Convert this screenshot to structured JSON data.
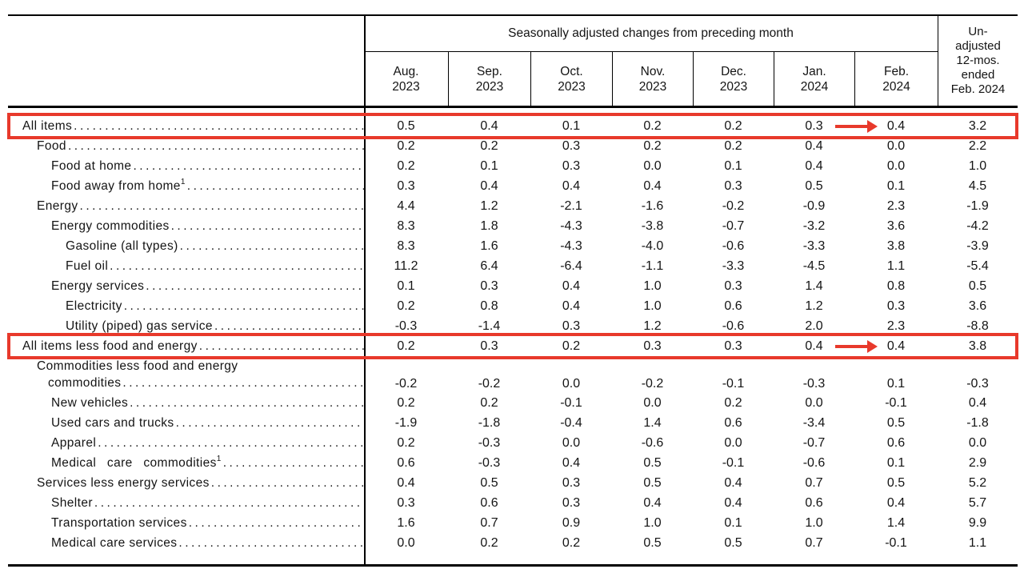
{
  "chart_data": {
    "type": "table",
    "spanner": "Seasonally adjusted changes from preceding month",
    "unadjusted_lines": [
      "Un-",
      "adjusted",
      "12-mos.",
      "ended",
      "Feb. 2024"
    ],
    "columns": [
      {
        "month": "Aug.",
        "year": "2023"
      },
      {
        "month": "Sep.",
        "year": "2023"
      },
      {
        "month": "Oct.",
        "year": "2023"
      },
      {
        "month": "Nov.",
        "year": "2023"
      },
      {
        "month": "Dec.",
        "year": "2023"
      },
      {
        "month": "Jan.",
        "year": "2024"
      },
      {
        "month": "Feb.",
        "year": "2024"
      }
    ],
    "last_column_header": "Un-adjusted 12-mos. ended Feb. 2024",
    "rows": [
      {
        "label": "All items",
        "indent": 0,
        "values": [
          "0.5",
          "0.4",
          "0.1",
          "0.2",
          "0.2",
          "0.3",
          "0.4",
          "3.2"
        ],
        "highlight": true,
        "arrow": true
      },
      {
        "label": "Food",
        "indent": 1,
        "values": [
          "0.2",
          "0.2",
          "0.3",
          "0.2",
          "0.2",
          "0.4",
          "0.0",
          "2.2"
        ]
      },
      {
        "label": "Food at home",
        "indent": 2,
        "values": [
          "0.2",
          "0.1",
          "0.3",
          "0.0",
          "0.1",
          "0.4",
          "0.0",
          "1.0"
        ]
      },
      {
        "label": "Food away from home",
        "sup": "1",
        "indent": 2,
        "values": [
          "0.3",
          "0.4",
          "0.4",
          "0.4",
          "0.3",
          "0.5",
          "0.1",
          "4.5"
        ]
      },
      {
        "label": "Energy",
        "indent": 1,
        "values": [
          "4.4",
          "1.2",
          "-2.1",
          "-1.6",
          "-0.2",
          "-0.9",
          "2.3",
          "-1.9"
        ]
      },
      {
        "label": "Energy commodities",
        "indent": 2,
        "values": [
          "8.3",
          "1.8",
          "-4.3",
          "-3.8",
          "-0.7",
          "-3.2",
          "3.6",
          "-4.2"
        ]
      },
      {
        "label": "Gasoline (all types)",
        "indent": 3,
        "values": [
          "8.3",
          "1.6",
          "-4.3",
          "-4.0",
          "-0.6",
          "-3.3",
          "3.8",
          "-3.9"
        ]
      },
      {
        "label": "Fuel oil",
        "indent": 3,
        "values": [
          "11.2",
          "6.4",
          "-6.4",
          "-1.1",
          "-3.3",
          "-4.5",
          "1.1",
          "-5.4"
        ]
      },
      {
        "label": "Energy services",
        "indent": 2,
        "values": [
          "0.1",
          "0.3",
          "0.4",
          "1.0",
          "0.3",
          "1.4",
          "0.8",
          "0.5"
        ]
      },
      {
        "label": "Electricity",
        "indent": 3,
        "values": [
          "0.2",
          "0.8",
          "0.4",
          "1.0",
          "0.6",
          "1.2",
          "0.3",
          "3.6"
        ]
      },
      {
        "label": "Utility (piped) gas service",
        "indent": 3,
        "values": [
          "-0.3",
          "-1.4",
          "0.3",
          "1.2",
          "-0.6",
          "2.0",
          "2.3",
          "-8.8"
        ]
      },
      {
        "label": "All items less food and energy",
        "indent": 0,
        "values": [
          "0.2",
          "0.3",
          "0.2",
          "0.3",
          "0.3",
          "0.4",
          "0.4",
          "3.8"
        ],
        "highlight": true,
        "arrow": true
      },
      {
        "label": "Commodities less food and energy",
        "label2": "commodities",
        "indent": 1,
        "values": [
          "-0.2",
          "-0.2",
          "0.0",
          "-0.2",
          "-0.1",
          "-0.3",
          "0.1",
          "-0.3"
        ]
      },
      {
        "label": "New vehicles",
        "indent": 2,
        "values": [
          "0.2",
          "0.2",
          "-0.1",
          "0.0",
          "0.2",
          "0.0",
          "-0.1",
          "0.4"
        ]
      },
      {
        "label": "Used cars and trucks",
        "indent": 2,
        "values": [
          "-1.9",
          "-1.8",
          "-0.4",
          "1.4",
          "0.6",
          "-3.4",
          "0.5",
          "-1.8"
        ]
      },
      {
        "label": "Apparel",
        "indent": 2,
        "values": [
          "0.2",
          "-0.3",
          "0.0",
          "-0.6",
          "0.0",
          "-0.7",
          "0.6",
          "0.0"
        ]
      },
      {
        "label": "Medical care commodities",
        "sup": "1",
        "indent": 2,
        "justify": true,
        "values": [
          "0.6",
          "-0.3",
          "0.4",
          "0.5",
          "-0.1",
          "-0.6",
          "0.1",
          "2.9"
        ]
      },
      {
        "label": "Services less energy services",
        "indent": 1,
        "values": [
          "0.4",
          "0.5",
          "0.3",
          "0.5",
          "0.4",
          "0.7",
          "0.5",
          "5.2"
        ]
      },
      {
        "label": "Shelter",
        "indent": 2,
        "values": [
          "0.3",
          "0.6",
          "0.3",
          "0.4",
          "0.4",
          "0.6",
          "0.4",
          "5.7"
        ]
      },
      {
        "label": "Transportation services",
        "indent": 2,
        "values": [
          "1.6",
          "0.7",
          "0.9",
          "1.0",
          "0.1",
          "1.0",
          "1.4",
          "9.9"
        ]
      },
      {
        "label": "Medical care services",
        "indent": 2,
        "values": [
          "0.0",
          "0.2",
          "0.2",
          "0.5",
          "0.5",
          "0.7",
          "-0.1",
          "1.1"
        ]
      }
    ]
  },
  "annotations": {
    "highlight_color": "#e8392b",
    "highlighted_rows": [
      "All items",
      "All items less food and energy"
    ],
    "arrow_points_to_column": "Feb. 2024"
  }
}
